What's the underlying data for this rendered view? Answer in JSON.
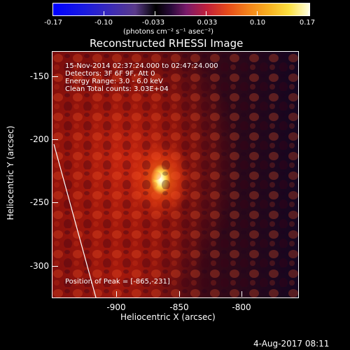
{
  "colorbar": {
    "ticks": [
      "-0.17",
      "-0.10",
      "-0.033",
      "0.033",
      "0.10",
      "0.17"
    ],
    "units": "(photons cm⁻² s⁻¹ asec⁻²)"
  },
  "title": "Reconstructed RHESSI Image",
  "annotations": {
    "time": "15-Nov-2014 02:37:24.000 to 02:47:24.000",
    "detectors": "Detectors: 3F 6F 9F, Att 0",
    "energy": "Energy Range: 3.0 - 6.0 keV",
    "clean": "Clean     Total counts: 3.03E+04",
    "peak": "Position of Peak = [-865,-231]"
  },
  "axes": {
    "xlabel": "Heliocentric X (arcsec)",
    "ylabel": "Heliocentric Y (arcsec)",
    "xticks": [
      "-900",
      "-850",
      "-800"
    ],
    "yticks": [
      "-150",
      "-200",
      "-250",
      "-300"
    ]
  },
  "footer": {
    "date": "4-Aug-2017 08:11"
  }
}
